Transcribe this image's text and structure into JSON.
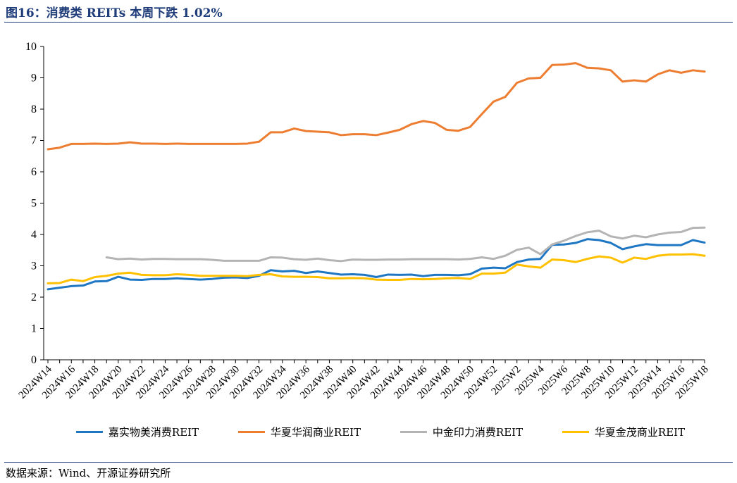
{
  "header": {
    "title": "图16：消费类 REITs 本周下跌 1.02%"
  },
  "footer": {
    "source": "数据来源：Wind、开源证券研究所"
  },
  "colors": {
    "jiashi": "#1f77c4",
    "huaxia_huarun": "#ed7d31",
    "zhongjin": "#b4b4b4",
    "huaxia_jinmao": "#ffc000"
  },
  "chart_data": {
    "type": "line",
    "title": "",
    "xlabel": "",
    "ylabel": "",
    "ylim": [
      0,
      10
    ],
    "yticks": [
      0,
      1,
      2,
      3,
      4,
      5,
      6,
      7,
      8,
      9,
      10
    ],
    "grid": false,
    "legend_position": "bottom",
    "x": [
      "2024W14",
      "2024W15",
      "2024W16",
      "2024W17",
      "2024W18",
      "2024W19",
      "2024W20",
      "2024W21",
      "2024W22",
      "2024W23",
      "2024W24",
      "2024W25",
      "2024W26",
      "2024W27",
      "2024W28",
      "2024W29",
      "2024W30",
      "2024W31",
      "2024W32",
      "2024W33",
      "2024W34",
      "2024W35",
      "2024W36",
      "2024W37",
      "2024W38",
      "2024W39",
      "2024W40",
      "2024W41",
      "2024W42",
      "2024W43",
      "2024W44",
      "2024W45",
      "2024W46",
      "2024W47",
      "2024W48",
      "2024W49",
      "2024W50",
      "2024W51",
      "2024W52",
      "2025W1",
      "2025W2",
      "2025W3",
      "2025W4",
      "2025W5",
      "2025W6",
      "2025W7",
      "2025W8",
      "2025W9",
      "2025W10",
      "2025W11",
      "2025W12",
      "2025W13",
      "2025W14",
      "2025W15",
      "2025W16",
      "2025W17",
      "2025W18"
    ],
    "x_tick_labels": [
      "2024W14",
      "2024W16",
      "2024W18",
      "2024W20",
      "2024W22",
      "2024W24",
      "2024W26",
      "2024W28",
      "2024W30",
      "2024W32",
      "2024W34",
      "2024W36",
      "2024W38",
      "2024W40",
      "2024W42",
      "2024W44",
      "2024W46",
      "2024W48",
      "2024W50",
      "2024W52",
      "2025W2",
      "2025W4",
      "2025W6",
      "2025W8",
      "2025W10",
      "2025W12",
      "2025W14",
      "2025W16",
      "2025W18"
    ],
    "series": [
      {
        "name": "嘉实物美消费REIT",
        "color_key": "jiashi",
        "values": [
          2.25,
          2.3,
          2.35,
          2.37,
          2.5,
          2.51,
          2.65,
          2.56,
          2.55,
          2.58,
          2.58,
          2.6,
          2.58,
          2.56,
          2.58,
          2.62,
          2.63,
          2.61,
          2.68,
          2.86,
          2.82,
          2.84,
          2.77,
          2.82,
          2.77,
          2.72,
          2.73,
          2.71,
          2.64,
          2.72,
          2.71,
          2.72,
          2.67,
          2.71,
          2.71,
          2.7,
          2.73,
          2.91,
          2.94,
          2.92,
          3.12,
          3.2,
          3.22,
          3.67,
          3.68,
          3.73,
          3.85,
          3.82,
          3.73,
          3.53,
          3.62,
          3.69,
          3.66,
          3.66,
          3.66,
          3.82,
          3.74
        ]
      },
      {
        "name": "华夏华润商业REIT",
        "color_key": "huaxia_huarun",
        "values": [
          6.72,
          6.77,
          6.89,
          6.89,
          6.9,
          6.89,
          6.9,
          6.94,
          6.9,
          6.9,
          6.89,
          6.9,
          6.89,
          6.89,
          6.89,
          6.89,
          6.89,
          6.9,
          6.96,
          7.26,
          7.26,
          7.38,
          7.3,
          7.28,
          7.26,
          7.17,
          7.2,
          7.2,
          7.17,
          7.25,
          7.34,
          7.52,
          7.62,
          7.56,
          7.34,
          7.31,
          7.43,
          7.84,
          8.24,
          8.39,
          8.84,
          8.98,
          9.0,
          9.41,
          9.42,
          9.47,
          9.32,
          9.3,
          9.24,
          8.88,
          8.92,
          8.88,
          9.11,
          9.24,
          9.16,
          9.24,
          9.2
        ]
      },
      {
        "name": "中金印力消费REIT",
        "color_key": "zhongjin",
        "values": [
          null,
          null,
          null,
          null,
          null,
          3.27,
          3.21,
          3.23,
          3.2,
          3.22,
          3.22,
          3.21,
          3.21,
          3.21,
          3.19,
          3.16,
          3.16,
          3.16,
          3.16,
          3.27,
          3.26,
          3.21,
          3.19,
          3.23,
          3.18,
          3.15,
          3.2,
          3.19,
          3.19,
          3.2,
          3.2,
          3.21,
          3.21,
          3.21,
          3.21,
          3.2,
          3.22,
          3.27,
          3.22,
          3.32,
          3.51,
          3.58,
          3.37,
          3.68,
          3.8,
          3.95,
          4.07,
          4.12,
          3.94,
          3.87,
          3.96,
          3.91,
          4.0,
          4.06,
          4.08,
          4.21,
          4.22
        ]
      },
      {
        "name": "华夏金茂商业REIT",
        "color_key": "huaxia_jinmao",
        "values": [
          2.44,
          2.45,
          2.56,
          2.51,
          2.64,
          2.68,
          2.75,
          2.78,
          2.71,
          2.7,
          2.7,
          2.73,
          2.71,
          2.68,
          2.68,
          2.68,
          2.68,
          2.67,
          2.71,
          2.73,
          2.66,
          2.65,
          2.65,
          2.64,
          2.6,
          2.6,
          2.61,
          2.6,
          2.56,
          2.55,
          2.55,
          2.58,
          2.57,
          2.58,
          2.6,
          2.61,
          2.58,
          2.75,
          2.75,
          2.78,
          3.04,
          2.98,
          2.94,
          3.2,
          3.18,
          3.12,
          3.22,
          3.3,
          3.26,
          3.1,
          3.26,
          3.22,
          3.32,
          3.36,
          3.36,
          3.37,
          3.32
        ]
      }
    ]
  }
}
